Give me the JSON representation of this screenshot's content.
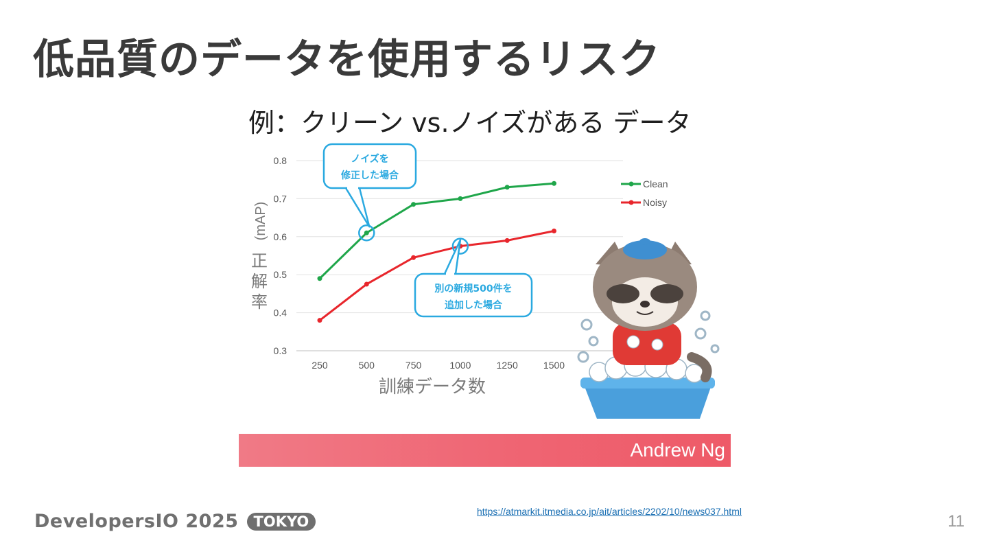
{
  "slide": {
    "title": "低品質のデータを使用するリスク",
    "page_number": "11",
    "source_url": "https://atmarkit.itmedia.co.jp/ait/articles/2202/10/news037.html"
  },
  "footer": {
    "logo_text": "DevelopersIO 2025",
    "logo_badge": "TOKYO"
  },
  "figure": {
    "banner_text": "Andrew Ng"
  },
  "chart_data": {
    "type": "line",
    "title": "例：クリーン vs.ノイズがある データ",
    "ylabel_main": "正解率",
    "ylabel_unit": "(mAP)",
    "xlabel": "訓練データ数",
    "categories": [
      "250",
      "500",
      "750",
      "1000",
      "1250",
      "1500"
    ],
    "ylim": [
      0.3,
      0.8
    ],
    "yticks": [
      "0.8",
      "0.7",
      "0.6",
      "0.5",
      "0.4",
      "0.3"
    ],
    "grid": true,
    "legend_position": "right",
    "series": [
      {
        "name": "Clean",
        "color": "#1fa64a",
        "values": [
          0.49,
          0.61,
          0.685,
          0.7,
          0.73,
          0.74
        ]
      },
      {
        "name": "Noisy",
        "color": "#e8262c",
        "values": [
          0.38,
          0.475,
          0.545,
          0.575,
          0.59,
          0.615
        ]
      }
    ],
    "annotations": [
      {
        "line1": "ノイズを",
        "line2": "修正した場合",
        "series": "Clean",
        "index": 1
      },
      {
        "line1": "別の新規500件を",
        "line2": "追加した場合",
        "series": "Noisy",
        "index": 3
      }
    ],
    "annotation_color": "#2aa9e0"
  }
}
